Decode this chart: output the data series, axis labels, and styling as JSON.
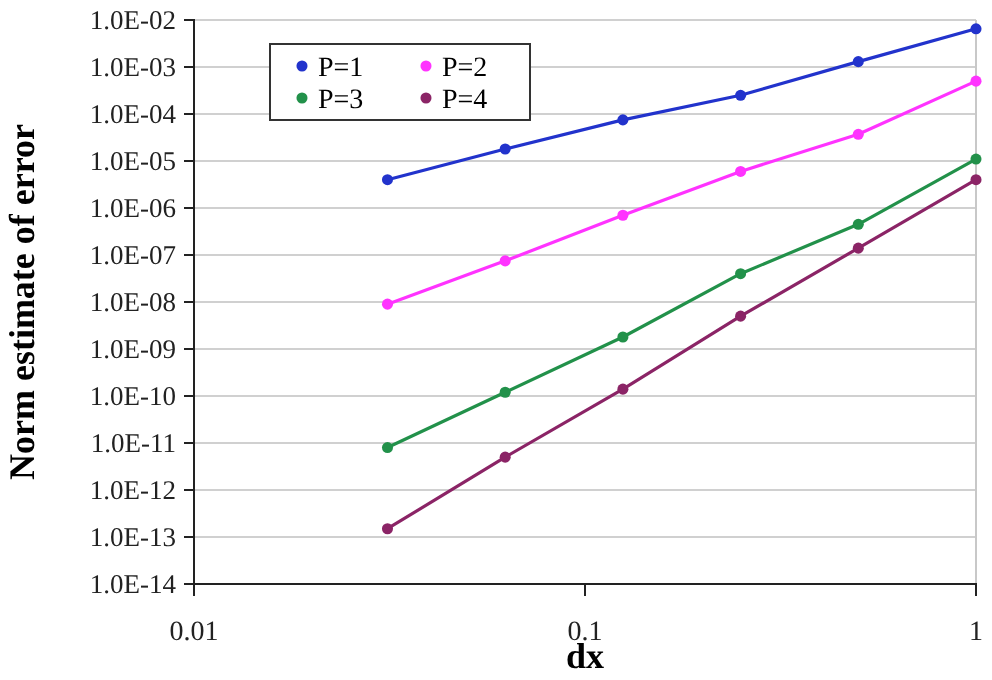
{
  "chart_data": {
    "type": "line",
    "xlabel": "dx",
    "ylabel": "Norm estimate of error",
    "log": "xy",
    "grid": "y",
    "legend": "top left",
    "marker": "circle",
    "line_style": "solid",
    "x": [
      0.03125,
      0.0625,
      0.125,
      0.25,
      0.5,
      1
    ],
    "xlim": [
      0.01,
      1
    ],
    "xticks": [
      0.01,
      0.1,
      1
    ],
    "ylim": [
      1e-14,
      0.01
    ],
    "yticks": [
      {
        "value": 1e-14,
        "label": "1.0E-14"
      },
      {
        "value": 1e-13,
        "label": "1.0E-13"
      },
      {
        "value": 1e-12,
        "label": "1.0E-12"
      },
      {
        "value": 1e-11,
        "label": "1.0E-11"
      },
      {
        "value": 1e-10,
        "label": "1.0E-10"
      },
      {
        "value": 1e-09,
        "label": "1.0E-09"
      },
      {
        "value": 1e-08,
        "label": "1.0E-08"
      },
      {
        "value": 1e-07,
        "label": "1.0E-07"
      },
      {
        "value": 1e-06,
        "label": "1.0E-06"
      },
      {
        "value": 1e-05,
        "label": "1.0E-05"
      },
      {
        "value": 0.0001,
        "label": "1.0E-04"
      },
      {
        "value": 0.001,
        "label": "1.0E-03"
      },
      {
        "value": 0.01,
        "label": "1.0E-02"
      }
    ],
    "series": [
      {
        "name": "P=1",
        "color": "#2233cc",
        "values": [
          4e-06,
          1.8e-05,
          7.5e-05,
          0.00025,
          0.0013,
          0.0065
        ]
      },
      {
        "name": "P=2",
        "color": "#ff33ff",
        "values": [
          9e-09,
          7.5e-08,
          7e-07,
          6e-06,
          3.7e-05,
          0.0005
        ]
      },
      {
        "name": "P=3",
        "color": "#22914a",
        "values": [
          8e-12,
          1.2e-10,
          1.8e-09,
          4e-08,
          4.5e-07,
          1.1e-05
        ]
      },
      {
        "name": "P=4",
        "color": "#8b2466",
        "values": [
          1.5e-13,
          5e-12,
          1.4e-10,
          5e-09,
          1.4e-07,
          4e-06
        ]
      }
    ]
  }
}
